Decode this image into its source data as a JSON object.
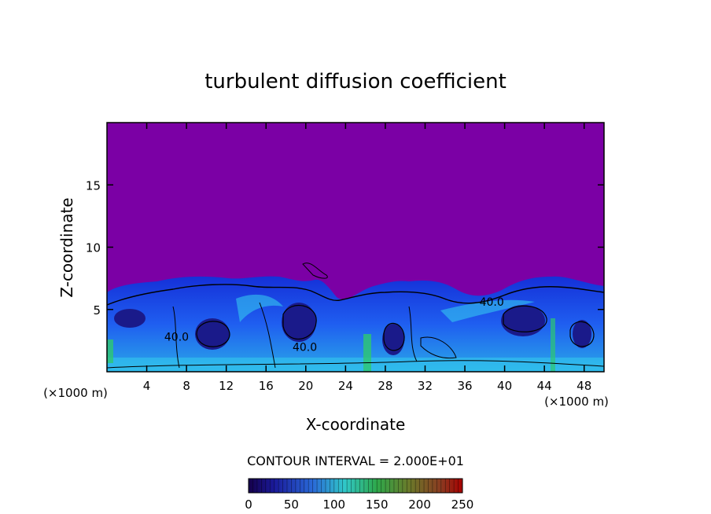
{
  "chart_data": {
    "type": "heatmap",
    "title": "turbulent diffusion coefficient",
    "xlabel": "X-coordinate",
    "ylabel": "Z-coordinate",
    "x_unit_left": "(×1000 m)",
    "x_unit_right": "(×1000 m)",
    "xlim": [
      0,
      50
    ],
    "ylim": [
      0,
      20
    ],
    "xticks": [
      4,
      8,
      12,
      16,
      20,
      24,
      28,
      32,
      36,
      40,
      44,
      48
    ],
    "yticks": [
      5,
      10,
      15
    ],
    "contour_interval_text": "CONTOUR INTERVAL = 2.000E+01",
    "contour_labels": [
      {
        "x": 7.0,
        "z": 2.8,
        "text": "40.0"
      },
      {
        "x": 19.9,
        "z": 2.0,
        "text": "40.0"
      },
      {
        "x": 38.7,
        "z": 5.6,
        "text": "40.0"
      }
    ],
    "colorbar": {
      "min": 0,
      "max": 250,
      "ticks": [
        0,
        50,
        100,
        150,
        200,
        250
      ]
    },
    "background_color": "#7b00a5"
  }
}
